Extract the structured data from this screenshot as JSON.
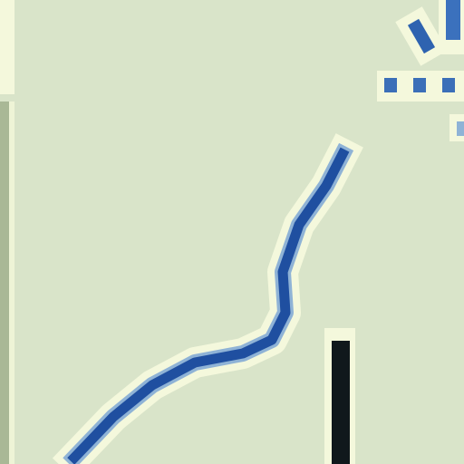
{
  "icon": {
    "name": "pen-stroke-icon",
    "colors": {
      "background": "#d9e4c9",
      "stroke": "#1f4fa0",
      "stroke_dark": "#163a86",
      "halo": "#f4f8dc",
      "handle": "#10181c"
    }
  }
}
